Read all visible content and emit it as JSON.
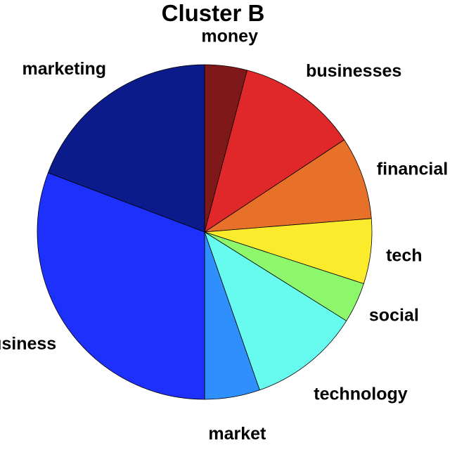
{
  "chart_data": {
    "type": "pie",
    "title": "Cluster B",
    "labels": [
      "money",
      "businesses",
      "financial",
      "tech",
      "social",
      "technology",
      "market",
      "business",
      "marketing"
    ],
    "values": [
      4.3,
      12.2,
      8.4,
      6.6,
      4.1,
      11.3,
      5.6,
      32.3,
      20.2
    ],
    "colors": [
      "#7f1818",
      "#e0282b",
      "#e8712a",
      "#fbeb2d",
      "#8ef86c",
      "#67fbef",
      "#2f8ffd",
      "#1e30fb",
      "#0b1b8c"
    ],
    "start_angle": "top (12 o'clock)",
    "direction": "clockwise",
    "legend": "none; labels placed outside slices"
  }
}
